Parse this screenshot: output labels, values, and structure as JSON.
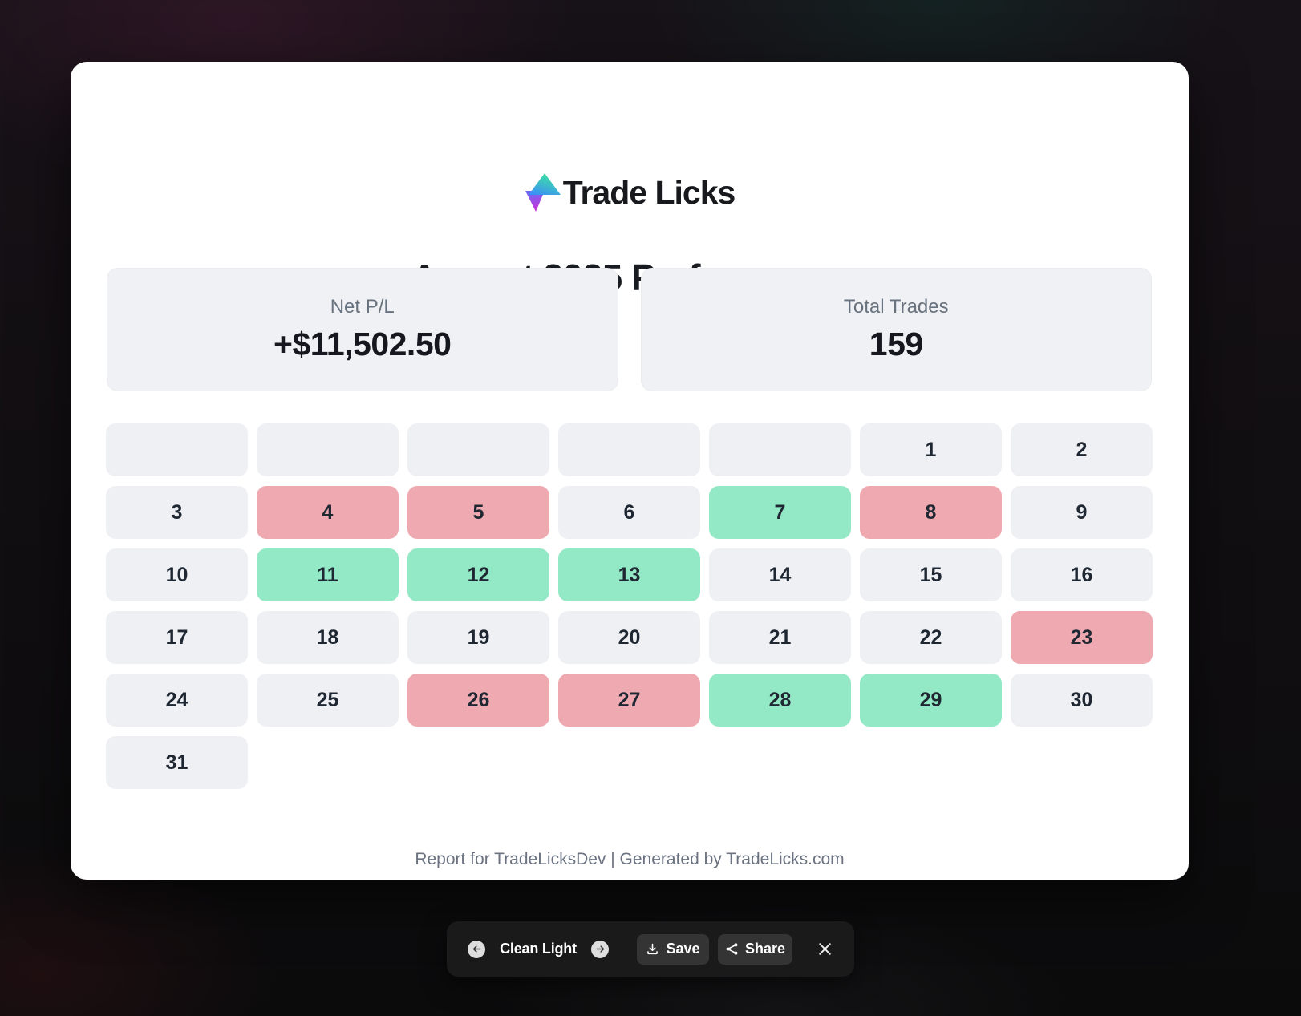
{
  "brand": {
    "name": "Trade Licks",
    "logo_icon": "up-down-gradient-arrows",
    "logo_colors": {
      "green": "#3de2a3",
      "blue": "#3b8df7",
      "indigo": "#6d6af5",
      "magenta": "#cd2fd4"
    }
  },
  "title": "August 2025 Performance",
  "stats": [
    {
      "label": "Net P/L",
      "value": "+$11,502.50"
    },
    {
      "label": "Total Trades",
      "value": "159"
    }
  ],
  "calendar": {
    "month": "August",
    "year": "2025",
    "leading_blanks": 5,
    "total_days": 31,
    "win_days": [
      7,
      11,
      12,
      13,
      28,
      29
    ],
    "loss_days": [
      4,
      5,
      8,
      23,
      26,
      27
    ]
  },
  "colors": {
    "win": "#93e8c5",
    "loss": "#efa9b0",
    "neutral": "#eef0f4",
    "card_bg": "#ffffff",
    "toolbar_bg": "#1b1b1b"
  },
  "footer": {
    "text": "Report for TradeLicksDev | Generated by TradeLicks.com"
  },
  "toolbar": {
    "theme_label": "Clean Light",
    "save_label": "Save",
    "share_label": "Share"
  }
}
